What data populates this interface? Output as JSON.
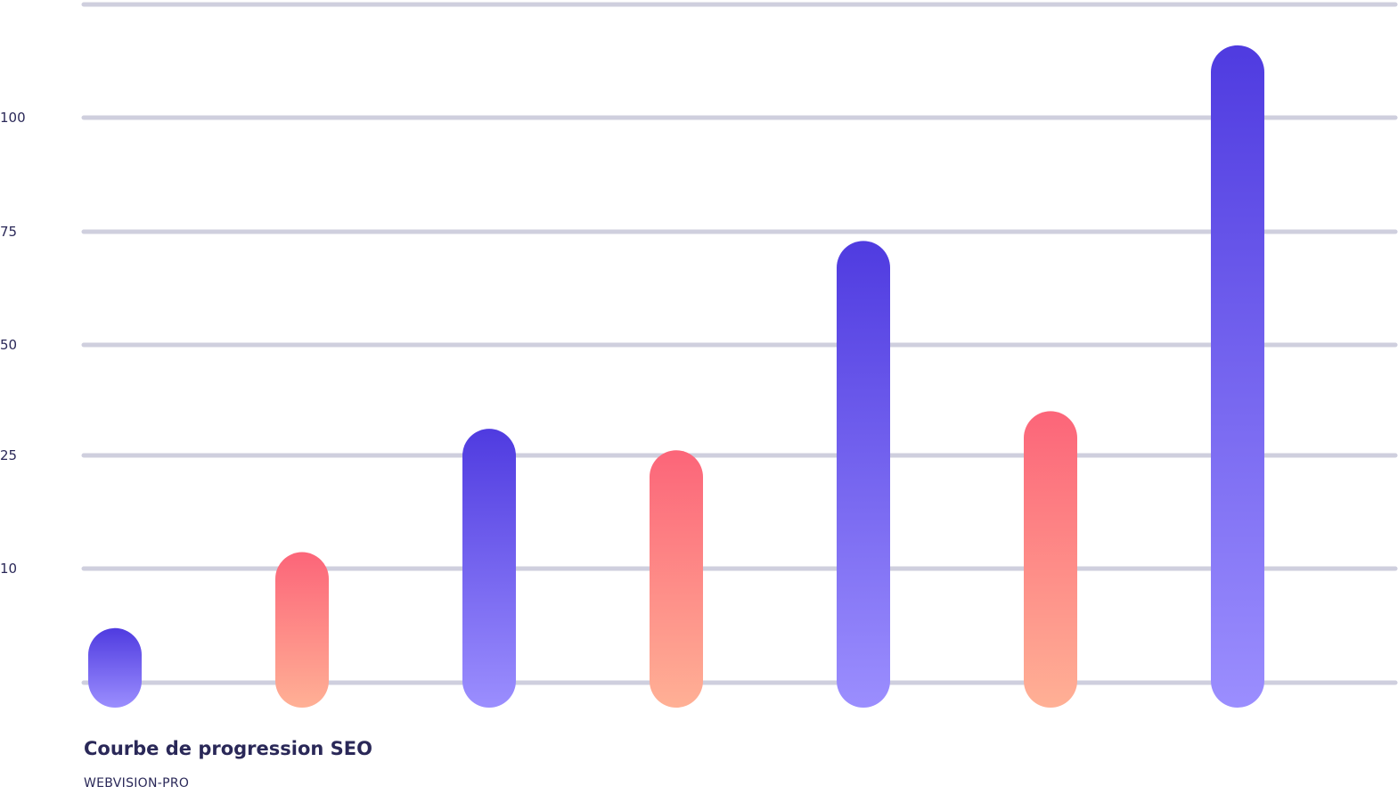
{
  "chart_data": {
    "type": "bar",
    "title": "Courbe de progression SEO",
    "subtitle": "WEBVISION-PRO",
    "xlabel": "",
    "ylabel": "",
    "categories": [
      "",
      "",
      "",
      "",
      "",
      "",
      ""
    ],
    "values": [
      4,
      11,
      29,
      24.5,
      71,
      33,
      114
    ],
    "bar_colors": [
      "blue",
      "coral",
      "blue",
      "coral",
      "blue",
      "coral",
      "blue"
    ],
    "y_ticks": [
      0,
      10,
      25,
      50,
      75,
      100,
      125
    ],
    "y_tick_labels": [
      "",
      "10",
      "25",
      "50",
      "75",
      "100",
      ""
    ],
    "ylim": [
      0,
      125
    ],
    "grid": true,
    "legend": "none"
  },
  "colors": {
    "blue_top": "#4f3be0",
    "blue_bottom": "#9b8efe",
    "coral_top": "#fc6579",
    "coral_bottom": "#ffb095",
    "grid": "#cfcfde",
    "text": "#2a2858"
  }
}
